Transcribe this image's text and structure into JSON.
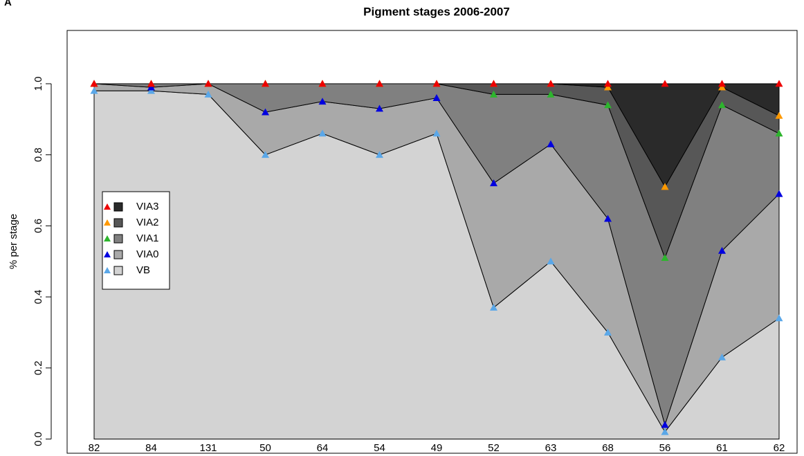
{
  "panel_label": "A",
  "chart_data": {
    "type": "stacked-area",
    "title": "Pigment stages 2006-2007",
    "y_label": "% per stage",
    "categories": [
      "82",
      "84",
      "131",
      "50",
      "64",
      "54",
      "49",
      "52",
      "63",
      "68",
      "56",
      "61",
      "62"
    ],
    "ylim": [
      -0.04,
      1.15
    ],
    "yticks": [
      {
        "value": 0,
        "label": "0.0"
      },
      0.2,
      0.4,
      0.6,
      0.8,
      {
        "value": 1,
        "label": "1.0"
      }
    ],
    "legend": "center left",
    "series": [
      {
        "name": "VB",
        "color": "#d3d3d3",
        "marker_color": "#5aa7e8",
        "values": [
          0.98,
          0.98,
          0.97,
          0.8,
          0.86,
          0.8,
          0.86,
          0.37,
          0.5,
          0.3,
          0.02,
          0.23,
          0.34
        ]
      },
      {
        "name": "VIA0",
        "color": "#a9a9a9",
        "marker_color": "#0000e0",
        "values": [
          0.02,
          0.01,
          0.03,
          0.12,
          0.09,
          0.13,
          0.1,
          0.35,
          0.33,
          0.32,
          0.02,
          0.3,
          0.35
        ]
      },
      {
        "name": "VIA1",
        "color": "#808080",
        "marker_color": "#2db52d",
        "values": [
          0,
          0.01,
          0,
          0.08,
          0.05,
          0.07,
          0.04,
          0.25,
          0.14,
          0.32,
          0.47,
          0.41,
          0.17
        ]
      },
      {
        "name": "VIA2",
        "color": "#575757",
        "marker_color": "#ff9900",
        "values": [
          0,
          0,
          0,
          0,
          0,
          0,
          0,
          0.03,
          0.03,
          0.05,
          0.2,
          0.05,
          0.05
        ]
      },
      {
        "name": "VIA3",
        "color": "#2a2a2a",
        "marker_color": "#ee0000",
        "values": [
          0,
          0,
          0,
          0,
          0,
          0,
          0,
          0,
          0,
          0.01,
          0.29,
          0.01,
          0.09
        ]
      }
    ]
  }
}
